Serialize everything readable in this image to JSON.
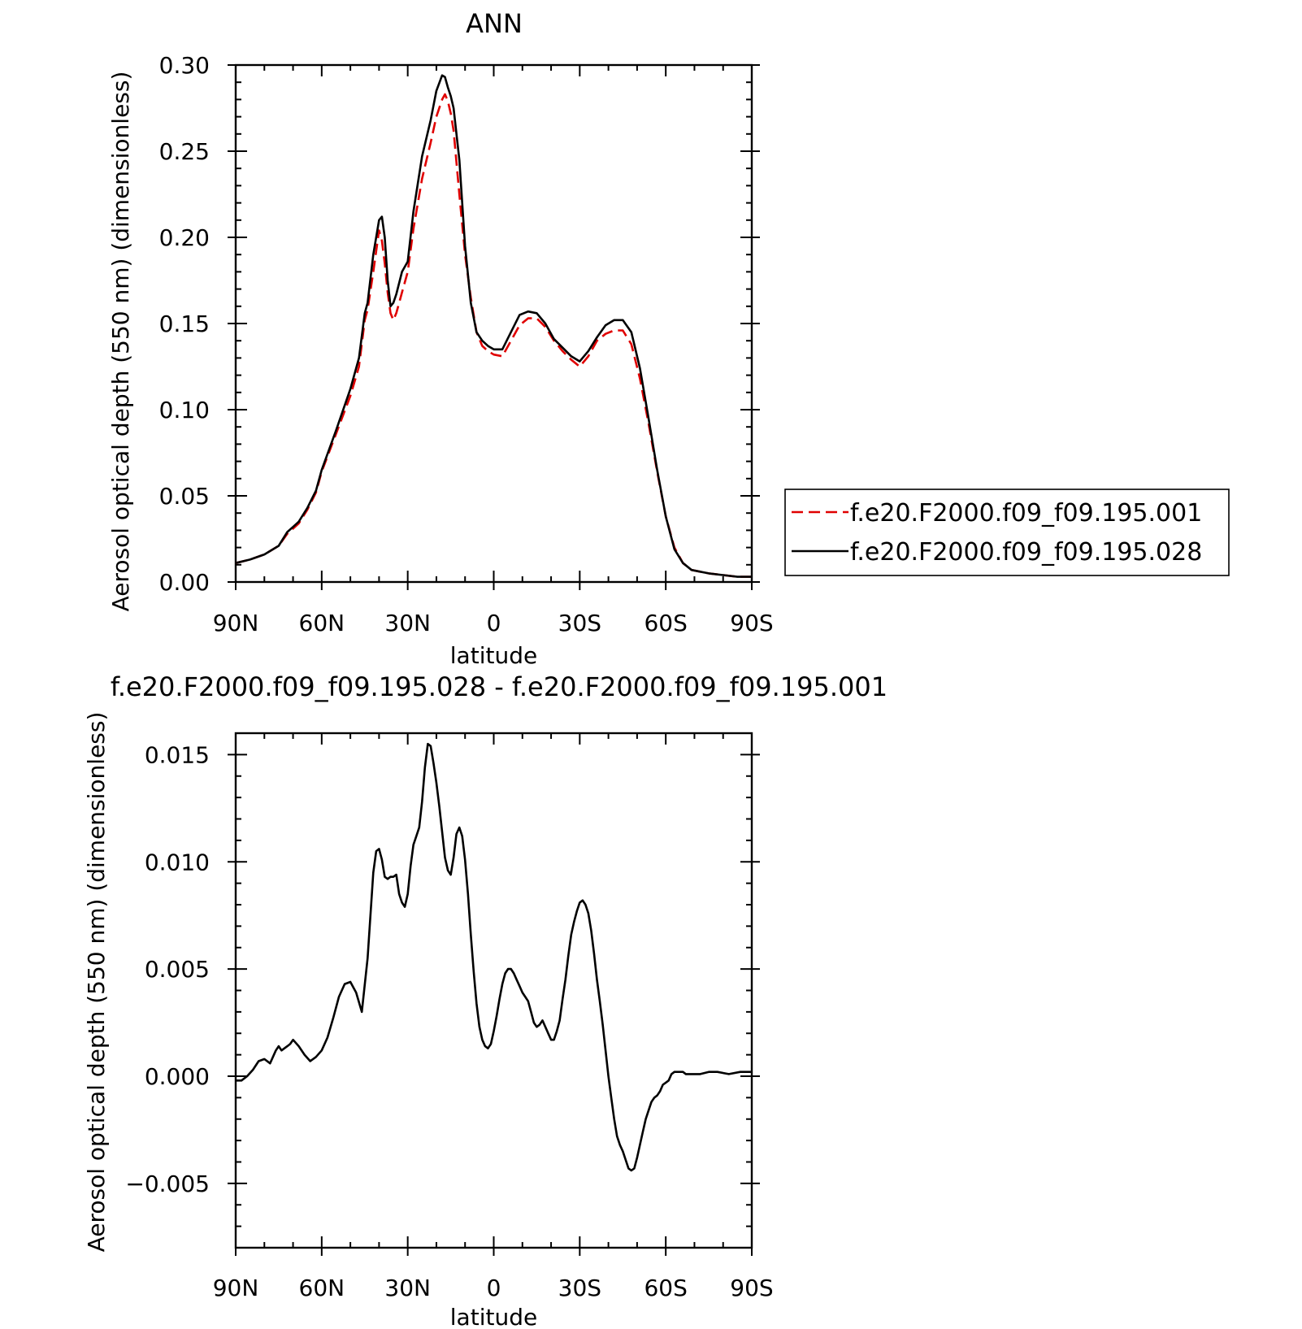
{
  "chart_data": [
    {
      "type": "line",
      "title": "ANN",
      "xlabel": "latitude",
      "ylabel": "Aerosol optical depth (550 nm) (dimensionless)",
      "xlim": [
        90,
        -90
      ],
      "ylim": [
        0,
        0.3
      ],
      "x_ticks": [
        90,
        60,
        30,
        0,
        -30,
        -60,
        -90
      ],
      "x_tick_labels": [
        "90N",
        "60N",
        "30N",
        "0",
        "30S",
        "60S",
        "90S"
      ],
      "y_ticks": [
        0,
        0.05,
        0.1,
        0.15,
        0.2,
        0.25,
        0.3
      ],
      "y_tick_labels": [
        "0.00",
        "0.05",
        "0.10",
        "0.15",
        "0.20",
        "0.25",
        "0.30"
      ],
      "grid": false,
      "legend_position": "right",
      "series": [
        {
          "name": "f.e20.F2000.f09_f09.195.001",
          "color": "#e00000",
          "dash": "dashed",
          "x": [
            90,
            85,
            80,
            75,
            72,
            70,
            68,
            65,
            62,
            60,
            55,
            50,
            47,
            45,
            44,
            42,
            40,
            39,
            38,
            37,
            36,
            35,
            34,
            32,
            30,
            28,
            25,
            22,
            20,
            18,
            17,
            16,
            15,
            14,
            12,
            10,
            8,
            6,
            4,
            2,
            0,
            -3,
            -6,
            -9,
            -12,
            -15,
            -18,
            -21,
            -24,
            -27,
            -30,
            -33,
            -36,
            -39,
            -42,
            -45,
            -48,
            -51,
            -54,
            -57,
            -60,
            -63,
            -66,
            -69,
            -72,
            -75,
            -80,
            -85,
            -90
          ],
          "y": [
            0.011,
            0.013,
            0.016,
            0.021,
            0.028,
            0.031,
            0.034,
            0.042,
            0.052,
            0.064,
            0.086,
            0.108,
            0.125,
            0.152,
            0.158,
            0.18,
            0.204,
            0.198,
            0.185,
            0.168,
            0.156,
            0.152,
            0.156,
            0.168,
            0.18,
            0.205,
            0.234,
            0.255,
            0.27,
            0.28,
            0.283,
            0.279,
            0.272,
            0.262,
            0.225,
            0.19,
            0.165,
            0.145,
            0.137,
            0.134,
            0.132,
            0.131,
            0.14,
            0.149,
            0.153,
            0.153,
            0.148,
            0.14,
            0.134,
            0.129,
            0.125,
            0.131,
            0.14,
            0.144,
            0.146,
            0.146,
            0.138,
            0.118,
            0.092,
            0.064,
            0.038,
            0.02,
            0.011,
            0.007,
            0.006,
            0.005,
            0.004,
            0.003,
            0.003
          ]
        },
        {
          "name": "f.e20.F2000.f09_f09.195.028",
          "color": "#000000",
          "dash": "solid",
          "x": [
            90,
            85,
            80,
            75,
            72,
            70,
            68,
            65,
            62,
            60,
            55,
            50,
            47,
            45,
            44,
            42,
            40,
            39,
            38,
            37,
            36,
            35,
            34,
            32,
            30,
            28,
            25,
            22,
            20,
            18,
            17,
            16,
            15,
            14,
            12,
            10,
            8,
            6,
            4,
            2,
            0,
            -3,
            -6,
            -9,
            -12,
            -15,
            -18,
            -21,
            -24,
            -27,
            -30,
            -33,
            -36,
            -39,
            -42,
            -45,
            -48,
            -51,
            -54,
            -57,
            -60,
            -63,
            -66,
            -69,
            -72,
            -75,
            -80,
            -85,
            -90
          ],
          "y": [
            0.011,
            0.013,
            0.016,
            0.021,
            0.029,
            0.032,
            0.035,
            0.043,
            0.053,
            0.065,
            0.088,
            0.112,
            0.13,
            0.156,
            0.162,
            0.19,
            0.21,
            0.212,
            0.2,
            0.175,
            0.16,
            0.162,
            0.167,
            0.18,
            0.186,
            0.215,
            0.247,
            0.268,
            0.285,
            0.294,
            0.293,
            0.287,
            0.282,
            0.275,
            0.245,
            0.195,
            0.162,
            0.145,
            0.14,
            0.137,
            0.135,
            0.135,
            0.145,
            0.155,
            0.157,
            0.156,
            0.15,
            0.141,
            0.136,
            0.131,
            0.128,
            0.134,
            0.142,
            0.149,
            0.152,
            0.152,
            0.145,
            0.124,
            0.095,
            0.065,
            0.038,
            0.019,
            0.011,
            0.007,
            0.006,
            0.005,
            0.004,
            0.003,
            0.003
          ]
        }
      ]
    },
    {
      "type": "line",
      "title": "f.e20.F2000.f09_f09.195.028 - f.e20.F2000.f09_f09.195.001",
      "xlabel": "latitude",
      "ylabel": "Aerosol optical depth (550 nm) (dimensionless)",
      "xlim": [
        90,
        -90
      ],
      "ylim": [
        -0.008,
        0.016
      ],
      "x_ticks": [
        90,
        60,
        30,
        0,
        -30,
        -60,
        -90
      ],
      "x_tick_labels": [
        "90N",
        "60N",
        "30N",
        "0",
        "30S",
        "60S",
        "90S"
      ],
      "y_ticks": [
        -0.005,
        0,
        0.005,
        0.01,
        0.015
      ],
      "y_tick_labels": [
        "−0.005",
        "0.000",
        "0.005",
        "0.010",
        "0.015"
      ],
      "grid": false,
      "series": [
        {
          "color": "#000000",
          "dash": "solid",
          "x": [
            90,
            88,
            86,
            84,
            82,
            80,
            78,
            76,
            75,
            74,
            72,
            71,
            70,
            68,
            66,
            64,
            62,
            60,
            58,
            56,
            54,
            52,
            50,
            48,
            46,
            44,
            42,
            41,
            40,
            39,
            38,
            37,
            36,
            35,
            34,
            33,
            32,
            31,
            30,
            29,
            28,
            27,
            26,
            25,
            24,
            23,
            22,
            21,
            20,
            19,
            18,
            17,
            16,
            15,
            14,
            13,
            12,
            11,
            10,
            9,
            8,
            7,
            6,
            5,
            4,
            3,
            2,
            1,
            0,
            -1,
            -2,
            -3,
            -4,
            -5,
            -6,
            -7,
            -8,
            -9,
            -10,
            -11,
            -12,
            -13,
            -14,
            -15,
            -16,
            -17,
            -18,
            -19,
            -20,
            -21,
            -22,
            -23,
            -24,
            -25,
            -26,
            -27,
            -28,
            -29,
            -30,
            -31,
            -32,
            -33,
            -34,
            -35,
            -36,
            -37,
            -38,
            -39,
            -40,
            -41,
            -42,
            -43,
            -44,
            -45,
            -46,
            -47,
            -48,
            -49,
            -50,
            -51,
            -52,
            -53,
            -54,
            -55,
            -56,
            -57,
            -58,
            -59,
            -60,
            -61,
            -62,
            -63,
            -64,
            -65,
            -66,
            -67,
            -68,
            -70,
            -72,
            -75,
            -78,
            -82,
            -86,
            -90
          ],
          "y": [
            -0.0002,
            -0.0002,
            0.0,
            0.0003,
            0.0007,
            0.0008,
            0.0006,
            0.0012,
            0.0014,
            0.0012,
            0.0014,
            0.0015,
            0.0017,
            0.0014,
            0.001,
            0.0007,
            0.0009,
            0.0012,
            0.0018,
            0.0027,
            0.0037,
            0.0043,
            0.0044,
            0.0039,
            0.003,
            0.0055,
            0.0095,
            0.0105,
            0.0106,
            0.0101,
            0.0093,
            0.0092,
            0.0093,
            0.0093,
            0.0094,
            0.0085,
            0.0081,
            0.0079,
            0.0085,
            0.0098,
            0.0108,
            0.0112,
            0.0116,
            0.0128,
            0.0144,
            0.0155,
            0.0154,
            0.0146,
            0.0137,
            0.0126,
            0.0114,
            0.0102,
            0.0096,
            0.0094,
            0.0102,
            0.0113,
            0.0116,
            0.0112,
            0.0101,
            0.0085,
            0.0066,
            0.0049,
            0.0034,
            0.0023,
            0.0017,
            0.0014,
            0.0013,
            0.0015,
            0.0021,
            0.0028,
            0.0036,
            0.0043,
            0.0048,
            0.005,
            0.005,
            0.0048,
            0.0045,
            0.0042,
            0.0039,
            0.0037,
            0.0035,
            0.003,
            0.0025,
            0.0023,
            0.0024,
            0.0026,
            0.0023,
            0.002,
            0.0017,
            0.0017,
            0.0021,
            0.0026,
            0.0036,
            0.0045,
            0.0056,
            0.0066,
            0.0072,
            0.0077,
            0.0081,
            0.0082,
            0.008,
            0.0076,
            0.0068,
            0.0057,
            0.0045,
            0.0035,
            0.0024,
            0.0012,
            0.0,
            -0.001,
            -0.002,
            -0.0028,
            -0.0032,
            -0.0035,
            -0.0039,
            -0.0043,
            -0.0044,
            -0.0043,
            -0.0038,
            -0.0032,
            -0.0026,
            -0.002,
            -0.0016,
            -0.0012,
            -0.001,
            -0.0009,
            -0.0007,
            -0.0004,
            -0.0003,
            -0.0002,
            0.0001,
            0.0002,
            0.0002,
            0.0002,
            0.0002,
            0.0001,
            0.0001,
            0.0001,
            0.0001,
            0.0002,
            0.0002,
            0.0001,
            0.0002,
            0.0002
          ]
        }
      ]
    }
  ]
}
